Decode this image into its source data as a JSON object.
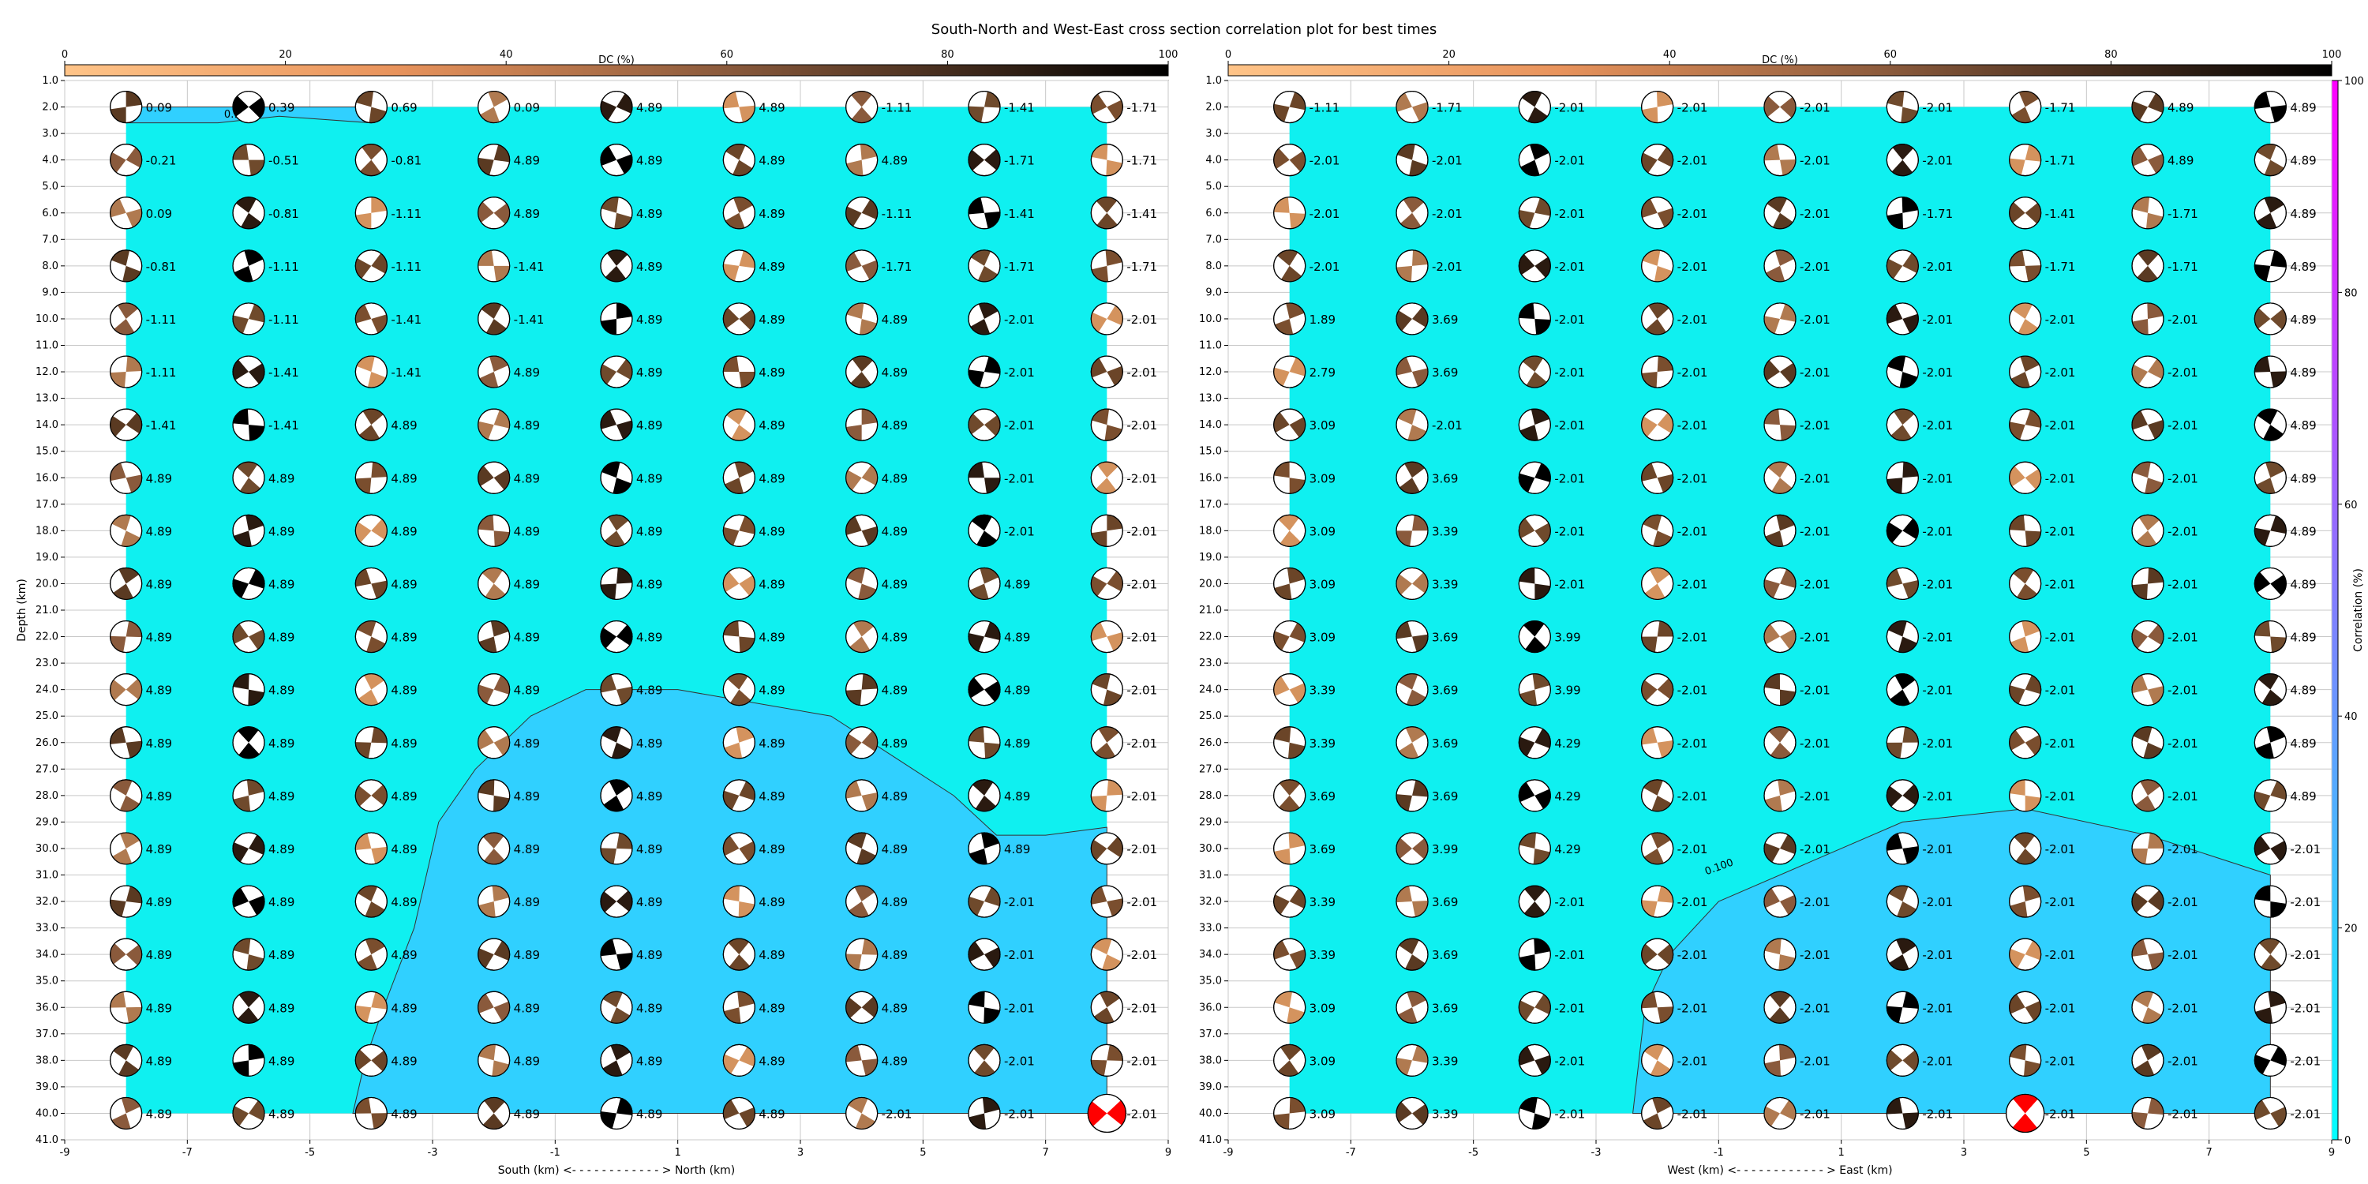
{
  "chart_data": {
    "type": "heatmap",
    "title": "South-North and West-East cross section correlation plot for best times",
    "depth_label": "Depth (km)",
    "depth_ticks": [
      "1.0",
      "2.0",
      "3.0",
      "4.0",
      "5.0",
      "6.0",
      "7.0",
      "8.0",
      "9.0",
      "10.0",
      "11.0",
      "12.0",
      "13.0",
      "14.0",
      "15.0",
      "16.0",
      "17.0",
      "18.0",
      "19.0",
      "20.0",
      "21.0",
      "22.0",
      "23.0",
      "24.0",
      "25.0",
      "26.0",
      "27.0",
      "28.0",
      "29.0",
      "30.0",
      "31.0",
      "32.0",
      "33.0",
      "34.0",
      "35.0",
      "36.0",
      "37.0",
      "38.0",
      "39.0",
      "40.0",
      "41.0"
    ],
    "depth_range": [
      1,
      41
    ],
    "x_range": [
      -9,
      9
    ],
    "x_ticks": [
      "-9",
      "-7",
      "-5",
      "-3",
      "-1",
      "1",
      "3",
      "5",
      "7",
      "9"
    ],
    "dc_colorbar": {
      "label": "DC (%)",
      "ticks": [
        "0",
        "20",
        "40",
        "60",
        "80",
        "100"
      ],
      "range": [
        0,
        100
      ]
    },
    "corr_colorbar": {
      "label": "Correlation (%)",
      "ticks": [
        "0",
        "20",
        "40",
        "60",
        "80",
        "100"
      ],
      "range": [
        0,
        100
      ]
    },
    "grid": true,
    "panels": [
      {
        "name": "south-north",
        "xlabel": "South (km) <- - - - - - - - - - - - > North (km)",
        "x_positions": [
          -8,
          -6,
          -4,
          -2,
          0,
          2,
          4,
          6,
          8
        ],
        "depths": [
          2,
          4,
          6,
          8,
          10,
          12,
          14,
          16,
          18,
          20,
          22,
          24,
          26,
          28,
          30,
          32,
          34,
          36,
          38,
          40
        ],
        "contour_label": "0.100",
        "time_values": [
          [
            "0.09",
            "0.39",
            "0.69",
            "0.09",
            "4.89",
            "4.89",
            "-1.11",
            "-1.41",
            "-1.71"
          ],
          [
            "-0.21",
            "-0.51",
            "-0.81",
            "4.89",
            "4.89",
            "4.89",
            "4.89",
            "-1.71",
            "-1.71"
          ],
          [
            "0.09",
            "-0.81",
            "-1.11",
            "4.89",
            "4.89",
            "4.89",
            "-1.11",
            "-1.41",
            "-1.41"
          ],
          [
            "-0.81",
            "-1.11",
            "-1.11",
            "-1.41",
            "4.89",
            "4.89",
            "-1.71",
            "-1.71",
            "-1.71"
          ],
          [
            "-1.11",
            "-1.11",
            "-1.41",
            "-1.41",
            "4.89",
            "4.89",
            "4.89",
            "-2.01",
            "-2.01"
          ],
          [
            "-1.11",
            "-1.41",
            "-1.41",
            "4.89",
            "4.89",
            "4.89",
            "4.89",
            "-2.01",
            "-2.01"
          ],
          [
            "-1.41",
            "-1.41",
            "4.89",
            "4.89",
            "4.89",
            "4.89",
            "4.89",
            "-2.01",
            "-2.01"
          ],
          [
            "4.89",
            "4.89",
            "4.89",
            "4.89",
            "4.89",
            "4.89",
            "4.89",
            "-2.01",
            "-2.01"
          ],
          [
            "4.89",
            "4.89",
            "4.89",
            "4.89",
            "4.89",
            "4.89",
            "4.89",
            "-2.01",
            "-2.01"
          ],
          [
            "4.89",
            "4.89",
            "4.89",
            "4.89",
            "4.89",
            "4.89",
            "4.89",
            "4.89",
            "-2.01"
          ],
          [
            "4.89",
            "4.89",
            "4.89",
            "4.89",
            "4.89",
            "4.89",
            "4.89",
            "4.89",
            "-2.01"
          ],
          [
            "4.89",
            "4.89",
            "4.89",
            "4.89",
            "4.89",
            "4.89",
            "4.89",
            "4.89",
            "-2.01"
          ],
          [
            "4.89",
            "4.89",
            "4.89",
            "4.89",
            "4.89",
            "4.89",
            "4.89",
            "4.89",
            "-2.01"
          ],
          [
            "4.89",
            "4.89",
            "4.89",
            "4.89",
            "4.89",
            "4.89",
            "4.89",
            "4.89",
            "-2.01"
          ],
          [
            "4.89",
            "4.89",
            "4.89",
            "4.89",
            "4.89",
            "4.89",
            "4.89",
            "4.89",
            "-2.01"
          ],
          [
            "4.89",
            "4.89",
            "4.89",
            "4.89",
            "4.89",
            "4.89",
            "4.89",
            "-2.01",
            "-2.01"
          ],
          [
            "4.89",
            "4.89",
            "4.89",
            "4.89",
            "4.89",
            "4.89",
            "4.89",
            "-2.01",
            "-2.01"
          ],
          [
            "4.89",
            "4.89",
            "4.89",
            "4.89",
            "4.89",
            "4.89",
            "4.89",
            "-2.01",
            "-2.01"
          ],
          [
            "4.89",
            "4.89",
            "4.89",
            "4.89",
            "4.89",
            "4.89",
            "4.89",
            "-2.01",
            "-2.01"
          ],
          [
            "4.89",
            "4.89",
            "4.89",
            "4.89",
            "4.89",
            "4.89",
            "-2.01",
            "-2.01",
            "-2.01"
          ]
        ],
        "best_solution": {
          "x": 8,
          "depth": 40
        }
      },
      {
        "name": "west-east",
        "xlabel": "West (km) <- - - - - - - - - - - - > East (km)",
        "x_positions": [
          -8,
          -6,
          -4,
          -2,
          0,
          2,
          4,
          6,
          8
        ],
        "depths": [
          2,
          4,
          6,
          8,
          10,
          12,
          14,
          16,
          18,
          20,
          22,
          24,
          26,
          28,
          30,
          32,
          34,
          36,
          38,
          40
        ],
        "contour_label": "0.100",
        "time_values": [
          [
            "-1.11",
            "-1.71",
            "-2.01",
            "-2.01",
            "-2.01",
            "-2.01",
            "-1.71",
            "4.89",
            "4.89"
          ],
          [
            "-2.01",
            "-2.01",
            "-2.01",
            "-2.01",
            "-2.01",
            "-2.01",
            "-1.71",
            "4.89",
            "4.89"
          ],
          [
            "-2.01",
            "-2.01",
            "-2.01",
            "-2.01",
            "-2.01",
            "-1.71",
            "-1.41",
            "-1.71",
            "4.89"
          ],
          [
            "-2.01",
            "-2.01",
            "-2.01",
            "-2.01",
            "-2.01",
            "-2.01",
            "-1.71",
            "-1.71",
            "4.89"
          ],
          [
            "1.89",
            "3.69",
            "-2.01",
            "-2.01",
            "-2.01",
            "-2.01",
            "-2.01",
            "-2.01",
            "4.89"
          ],
          [
            "2.79",
            "3.69",
            "-2.01",
            "-2.01",
            "-2.01",
            "-2.01",
            "-2.01",
            "-2.01",
            "4.89"
          ],
          [
            "3.09",
            "-2.01",
            "-2.01",
            "-2.01",
            "-2.01",
            "-2.01",
            "-2.01",
            "-2.01",
            "4.89"
          ],
          [
            "3.09",
            "3.69",
            "-2.01",
            "-2.01",
            "-2.01",
            "-2.01",
            "-2.01",
            "-2.01",
            "4.89"
          ],
          [
            "3.09",
            "3.39",
            "-2.01",
            "-2.01",
            "-2.01",
            "-2.01",
            "-2.01",
            "-2.01",
            "4.89"
          ],
          [
            "3.09",
            "3.39",
            "-2.01",
            "-2.01",
            "-2.01",
            "-2.01",
            "-2.01",
            "-2.01",
            "4.89"
          ],
          [
            "3.09",
            "3.69",
            "3.99",
            "-2.01",
            "-2.01",
            "-2.01",
            "-2.01",
            "-2.01",
            "4.89"
          ],
          [
            "3.39",
            "3.69",
            "3.99",
            "-2.01",
            "-2.01",
            "-2.01",
            "-2.01",
            "-2.01",
            "4.89"
          ],
          [
            "3.39",
            "3.69",
            "4.29",
            "-2.01",
            "-2.01",
            "-2.01",
            "-2.01",
            "-2.01",
            "4.89"
          ],
          [
            "3.69",
            "3.69",
            "4.29",
            "-2.01",
            "-2.01",
            "-2.01",
            "-2.01",
            "-2.01",
            "4.89"
          ],
          [
            "3.69",
            "3.99",
            "4.29",
            "-2.01",
            "-2.01",
            "-2.01",
            "-2.01",
            "-2.01",
            "-2.01"
          ],
          [
            "3.39",
            "3.69",
            "-2.01",
            "-2.01",
            "-2.01",
            "-2.01",
            "-2.01",
            "-2.01",
            "-2.01"
          ],
          [
            "3.39",
            "3.69",
            "-2.01",
            "-2.01",
            "-2.01",
            "-2.01",
            "-2.01",
            "-2.01",
            "-2.01"
          ],
          [
            "3.09",
            "3.69",
            "-2.01",
            "-2.01",
            "-2.01",
            "-2.01",
            "-2.01",
            "-2.01",
            "-2.01"
          ],
          [
            "3.09",
            "3.39",
            "-2.01",
            "-2.01",
            "-2.01",
            "-2.01",
            "-2.01",
            "-2.01",
            "-2.01"
          ],
          [
            "3.09",
            "3.39",
            "-2.01",
            "-2.01",
            "-2.01",
            "-2.01",
            "-2.01",
            "-2.01",
            "-2.01"
          ]
        ],
        "best_solution": {
          "x": 4,
          "depth": 40
        }
      }
    ]
  },
  "colors": {
    "background_low": "#0ff0f0",
    "background_high": "#30d0ff",
    "best_solution": "#ff0000",
    "grid": "#c8c8c8"
  }
}
